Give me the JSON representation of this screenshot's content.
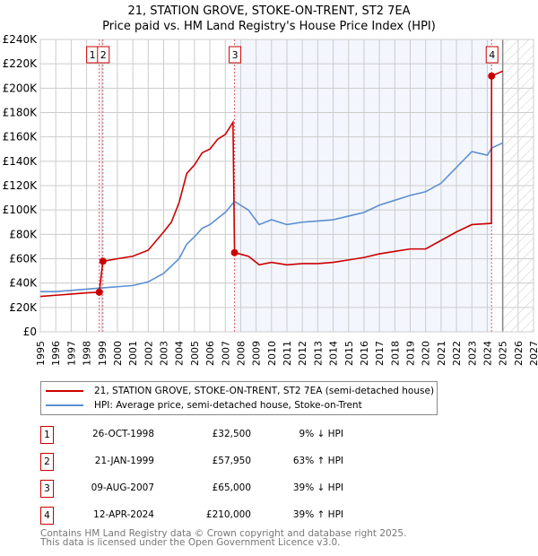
{
  "chart_data": {
    "type": "line",
    "title": "21, STATION GROVE, STOKE-ON-TRENT, ST2 7EA",
    "subtitle": "Price paid vs. HM Land Registry's House Price Index (HPI)",
    "xlim": [
      1995,
      2027
    ],
    "ylim": [
      0,
      240000
    ],
    "x_ticks": [
      "1995",
      "1996",
      "1997",
      "1998",
      "1999",
      "2000",
      "2001",
      "2002",
      "2003",
      "2004",
      "2005",
      "2006",
      "2007",
      "2008",
      "2009",
      "2010",
      "2011",
      "2012",
      "2013",
      "2014",
      "2015",
      "2016",
      "2017",
      "2018",
      "2019",
      "2020",
      "2021",
      "2022",
      "2023",
      "2024",
      "2025",
      "2026",
      "2027"
    ],
    "y_ticks": [
      "£0",
      "£20K",
      "£40K",
      "£60K",
      "£80K",
      "£100K",
      "£120K",
      "£140K",
      "£160K",
      "£180K",
      "£200K",
      "£220K",
      "£240K"
    ],
    "grid": true,
    "series": [
      {
        "name": "21, STATION GROVE, STOKE-ON-TRENT, ST2 7EA (semi-detached house)",
        "color": "#cc0000",
        "x": [
          1995,
          1996,
          1997,
          1998,
          1998.82,
          1999.06,
          2000,
          2001,
          2002,
          2003,
          2003.5,
          2004,
          2004.5,
          2005,
          2005.5,
          2006,
          2006.5,
          2007,
          2007.5,
          2007.6,
          2008.5,
          2009.2,
          2010,
          2011,
          2012,
          2013,
          2014,
          2015,
          2016,
          2017,
          2018,
          2019,
          2020,
          2021,
          2022,
          2023,
          2024.27,
          2024.28,
          2025
        ],
        "y": [
          29000,
          30000,
          31000,
          32000,
          32500,
          57950,
          60000,
          62000,
          67000,
          82000,
          90000,
          106000,
          130000,
          137000,
          147000,
          150000,
          158000,
          162000,
          172000,
          65000,
          62000,
          55000,
          57000,
          55000,
          56000,
          56000,
          57000,
          59000,
          61000,
          64000,
          66000,
          68000,
          68000,
          75000,
          82000,
          88000,
          89000,
          210000,
          214000
        ]
      },
      {
        "name": "HPI: Average price, semi-detached house, Stoke-on-Trent",
        "color": "#5b8fd0",
        "x": [
          1995,
          1996,
          1997,
          1998,
          1999,
          2000,
          2001,
          2002,
          2003,
          2003.5,
          2004,
          2004.5,
          2005,
          2005.5,
          2006,
          2006.5,
          2007,
          2007.6,
          2008.5,
          2009.2,
          2010,
          2011,
          2012,
          2013,
          2014,
          2015,
          2016,
          2017,
          2018,
          2019,
          2020,
          2021,
          2022,
          2023,
          2024,
          2024.3,
          2025
        ],
        "y": [
          33000,
          33000,
          34000,
          35000,
          36000,
          37000,
          38000,
          41000,
          48000,
          54000,
          60000,
          72000,
          78000,
          85000,
          88000,
          93000,
          98000,
          107000,
          100000,
          88000,
          92000,
          88000,
          90000,
          91000,
          92000,
          95000,
          98000,
          104000,
          108000,
          112000,
          115000,
          122000,
          135000,
          148000,
          145000,
          151000,
          155000
        ]
      }
    ],
    "sales": [
      {
        "n": "1",
        "x": 1998.82,
        "y": 32500
      },
      {
        "n": "2",
        "x": 1999.06,
        "y": 57950
      },
      {
        "n": "3",
        "x": 2007.6,
        "y": 65000
      },
      {
        "n": "4",
        "x": 2024.28,
        "y": 210000
      }
    ],
    "forecast_start": 2025
  },
  "legend": [
    "21, STATION GROVE, STOKE-ON-TRENT, ST2 7EA (semi-detached house)",
    "HPI: Average price, semi-detached house, Stoke-on-Trent"
  ],
  "table": [
    {
      "n": "1",
      "date": "26-OCT-1998",
      "price": "£32,500",
      "hpi": "9% ↓ HPI"
    },
    {
      "n": "2",
      "date": "21-JAN-1999",
      "price": "£57,950",
      "hpi": "63% ↑ HPI"
    },
    {
      "n": "3",
      "date": "09-AUG-2007",
      "price": "£65,000",
      "hpi": "39% ↓ HPI"
    },
    {
      "n": "4",
      "date": "12-APR-2024",
      "price": "£210,000",
      "hpi": "39% ↑ HPI"
    }
  ],
  "footer": [
    "Contains HM Land Registry data © Crown copyright and database right 2025.",
    "This data is licensed under the Open Government Licence v3.0."
  ]
}
